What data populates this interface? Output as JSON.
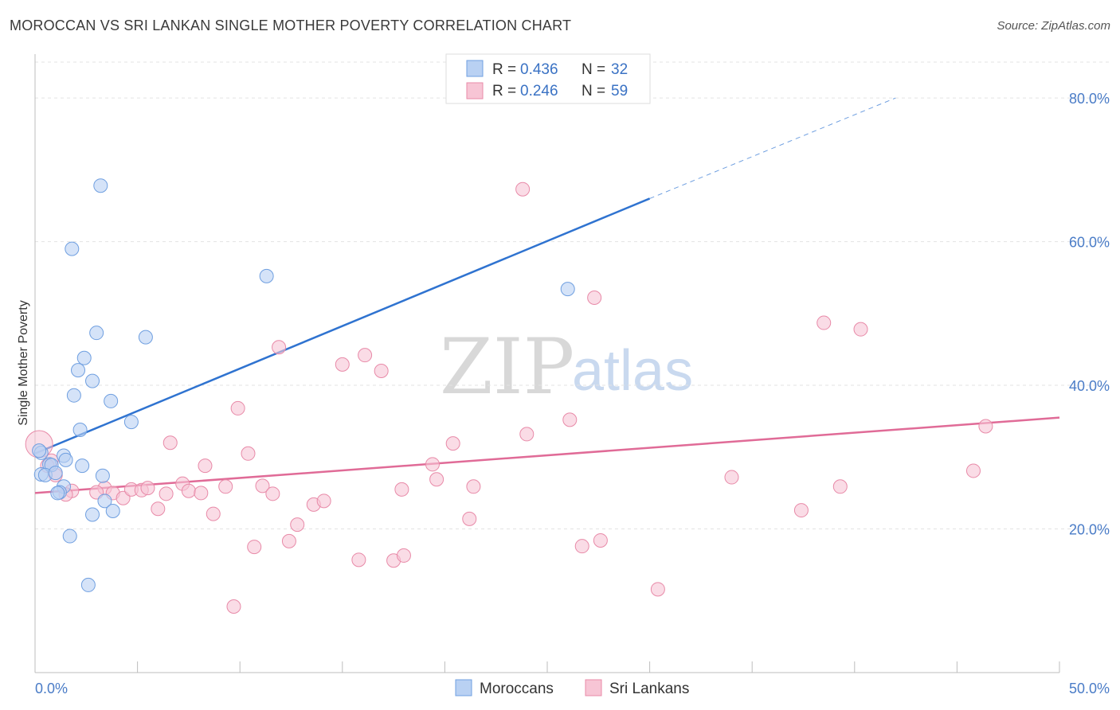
{
  "header": {
    "title": "MOROCCAN VS SRI LANKAN SINGLE MOTHER POVERTY CORRELATION CHART",
    "source": "Source: ZipAtlas.com"
  },
  "watermark": {
    "zip": "ZIP",
    "atlas": "atlas"
  },
  "colors": {
    "blue": "#6f9fe0",
    "blue_fill": "#b9d1f3",
    "blue_line": "#2f73d0",
    "pink": "#e88aa8",
    "pink_fill": "#f7c5d5",
    "pink_line": "#e06b97",
    "grid": "#e3e3e3",
    "tick_text": "#4a7cc7"
  },
  "legend": {
    "rows": [
      {
        "r_label": "R = ",
        "r_value": "0.436",
        "n_label": "N = ",
        "n_value": "32"
      },
      {
        "r_label": "R = ",
        "r_value": "0.246",
        "n_label": "N = ",
        "n_value": "59"
      }
    ]
  },
  "bottom_legend": {
    "series1": "Moroccans",
    "series2": "Sri Lankans"
  },
  "chart_data": {
    "type": "scatter",
    "title": "MOROCCAN VS SRI LANKAN SINGLE MOTHER POVERTY CORRELATION CHART",
    "xlabel": "",
    "ylabel": "Single Mother Poverty",
    "xlim": [
      0,
      50
    ],
    "ylim": [
      0,
      85
    ],
    "x_tick_labels": [
      "0.0%",
      "50.0%"
    ],
    "y_ticks": [
      20,
      40,
      60,
      80
    ],
    "y_tick_labels": [
      "20.0%",
      "40.0%",
      "60.0%",
      "80.0%"
    ],
    "grid": true,
    "legend_position": "top-center",
    "series": [
      {
        "name": "Moroccans",
        "r": 0.436,
        "n": 32,
        "trend": {
          "x0": 0,
          "y0": 30.5,
          "x1": 30,
          "y1": 66,
          "dash_to_x": 42,
          "dash_to_y": 80
        },
        "points": [
          [
            3.2,
            67.8
          ],
          [
            1.8,
            59.0
          ],
          [
            11.3,
            55.2
          ],
          [
            5.4,
            46.7
          ],
          [
            3.0,
            47.3
          ],
          [
            2.4,
            43.8
          ],
          [
            2.1,
            42.1
          ],
          [
            2.8,
            40.6
          ],
          [
            1.9,
            38.6
          ],
          [
            3.7,
            37.8
          ],
          [
            4.7,
            34.9
          ],
          [
            2.2,
            33.8
          ],
          [
            0.3,
            30.6
          ],
          [
            1.4,
            30.2
          ],
          [
            0.7,
            29.0
          ],
          [
            1.5,
            29.6
          ],
          [
            0.8,
            28.9
          ],
          [
            2.3,
            28.8
          ],
          [
            0.3,
            27.6
          ],
          [
            0.5,
            27.5
          ],
          [
            1.0,
            27.8
          ],
          [
            3.3,
            27.4
          ],
          [
            1.4,
            25.9
          ],
          [
            1.2,
            25.1
          ],
          [
            1.1,
            25.0
          ],
          [
            3.4,
            23.9
          ],
          [
            3.8,
            22.5
          ],
          [
            2.8,
            22.0
          ],
          [
            1.7,
            19.0
          ],
          [
            2.6,
            12.2
          ],
          [
            26.0,
            53.4
          ],
          [
            0.2,
            30.9
          ]
        ]
      },
      {
        "name": "Sri Lankans",
        "r": 0.246,
        "n": 59,
        "trend": {
          "x0": 0,
          "y0": 25.0,
          "x1": 50,
          "y1": 35.5
        },
        "points": [
          [
            0.2,
            31.8
          ],
          [
            0.8,
            29.5
          ],
          [
            0.6,
            28.8
          ],
          [
            1.0,
            27.5
          ],
          [
            1.8,
            25.3
          ],
          [
            1.5,
            24.8
          ],
          [
            3.4,
            25.7
          ],
          [
            3.0,
            25.1
          ],
          [
            3.8,
            25.0
          ],
          [
            4.3,
            24.3
          ],
          [
            4.7,
            25.5
          ],
          [
            5.2,
            25.4
          ],
          [
            5.5,
            25.7
          ],
          [
            6.0,
            22.8
          ],
          [
            6.4,
            24.9
          ],
          [
            6.6,
            32.0
          ],
          [
            7.2,
            26.3
          ],
          [
            7.5,
            25.3
          ],
          [
            8.1,
            25.0
          ],
          [
            8.3,
            28.8
          ],
          [
            8.7,
            22.1
          ],
          [
            9.3,
            25.9
          ],
          [
            9.7,
            9.2
          ],
          [
            9.9,
            36.8
          ],
          [
            10.4,
            30.5
          ],
          [
            10.7,
            17.5
          ],
          [
            11.1,
            26.0
          ],
          [
            11.6,
            24.9
          ],
          [
            11.9,
            45.3
          ],
          [
            12.4,
            18.3
          ],
          [
            12.8,
            20.6
          ],
          [
            13.6,
            23.4
          ],
          [
            14.1,
            23.9
          ],
          [
            15.0,
            42.9
          ],
          [
            15.8,
            15.7
          ],
          [
            16.1,
            44.2
          ],
          [
            16.9,
            42.0
          ],
          [
            17.5,
            15.6
          ],
          [
            18.0,
            16.3
          ],
          [
            19.4,
            29.0
          ],
          [
            19.6,
            26.9
          ],
          [
            20.4,
            31.9
          ],
          [
            21.2,
            21.4
          ],
          [
            21.4,
            25.9
          ],
          [
            23.8,
            67.3
          ],
          [
            24.0,
            33.2
          ],
          [
            26.1,
            35.2
          ],
          [
            26.7,
            17.6
          ],
          [
            27.3,
            52.2
          ],
          [
            27.6,
            18.4
          ],
          [
            30.4,
            11.6
          ],
          [
            34.0,
            27.2
          ],
          [
            37.4,
            22.6
          ],
          [
            38.5,
            48.7
          ],
          [
            39.3,
            25.9
          ],
          [
            40.3,
            47.8
          ],
          [
            45.8,
            28.1
          ],
          [
            46.4,
            34.3
          ],
          [
            17.9,
            25.5
          ]
        ]
      }
    ]
  }
}
